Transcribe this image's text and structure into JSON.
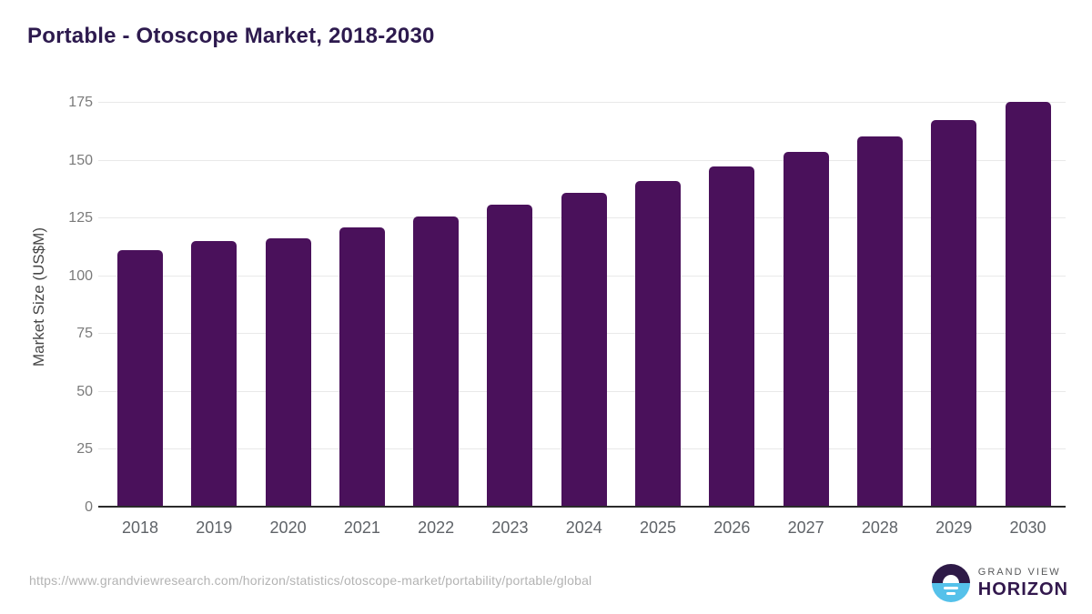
{
  "header": {
    "title": "Portable - Otoscope Market, 2018-2030"
  },
  "footer": {
    "source_url": "https://www.grandviewresearch.com/horizon/statistics/otoscope-market/portability/portable/global",
    "logo": {
      "line1": "GRAND VIEW",
      "line2": "HORIZON"
    }
  },
  "colors": {
    "bar": "#4a115b",
    "title": "#2d1a4e",
    "gridline": "#e9e9e9",
    "axis_line": "#2b2b2b",
    "y_tick_label": "#7a7a7a",
    "x_tick_label": "#5f6368",
    "axis_title": "#474747",
    "source_url": "#b3b3b3",
    "logo_purple": "#2e1a47",
    "logo_blue": "#55c1ea"
  },
  "chart_data": {
    "type": "bar",
    "title": "Portable - Otoscope Market, 2018-2030",
    "categories": [
      "2018",
      "2019",
      "2020",
      "2021",
      "2022",
      "2023",
      "2024",
      "2025",
      "2026",
      "2027",
      "2028",
      "2029",
      "2030"
    ],
    "values": [
      111.2,
      115.2,
      116.5,
      121.2,
      126.0,
      131.0,
      136.0,
      141.3,
      147.6,
      153.7,
      160.5,
      167.6,
      175.5
    ],
    "xlabel": "",
    "ylabel": "Market Size (US$M)",
    "ylim": [
      0,
      175
    ],
    "yticks": [
      0,
      25,
      50,
      75,
      100,
      125,
      150,
      175
    ],
    "grid": "horizontal",
    "legend": "none",
    "bar_color": "#4a115b"
  }
}
